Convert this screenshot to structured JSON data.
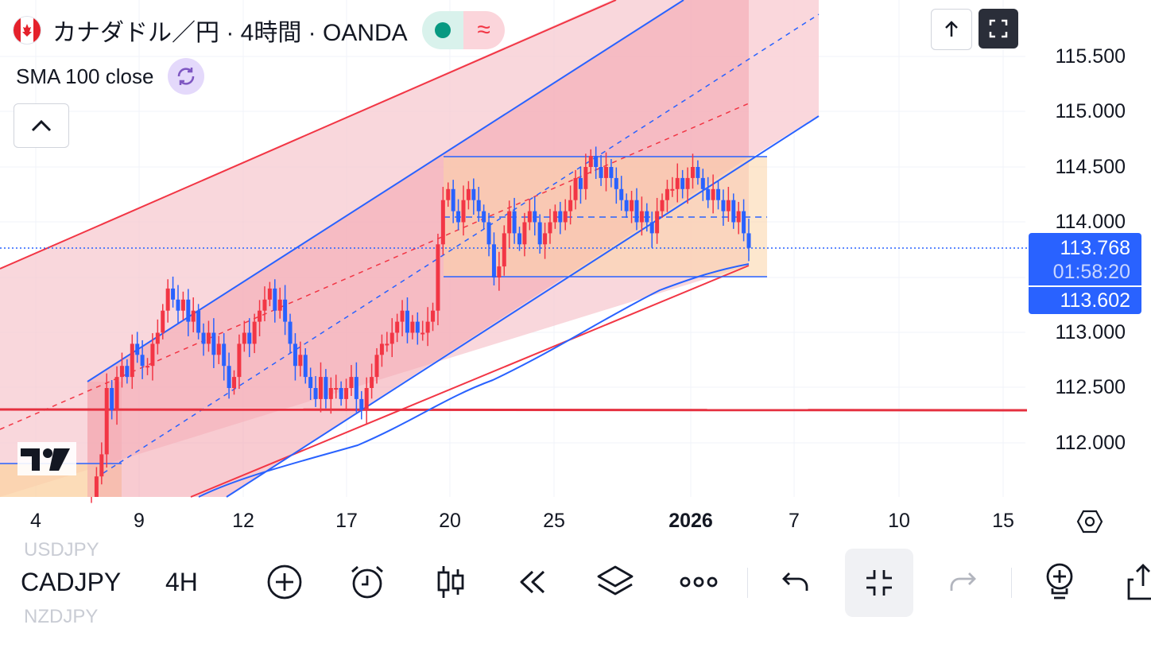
{
  "header": {
    "symbol_title": "カナダドル／円 · 4時間 · OANDA",
    "market_status_icon": "green-dot-icon",
    "wave_icon": "≈",
    "indicator_label": "SMA 100 close"
  },
  "price_axis": {
    "labels": [
      "115.500",
      "115.000",
      "114.500",
      "114.000",
      "113.000",
      "112.500",
      "112.000"
    ],
    "current_price": "113.768",
    "countdown": "01:58:20",
    "sma_price": "113.602"
  },
  "time_axis": {
    "labels": [
      {
        "text": "4",
        "bold": false
      },
      {
        "text": "9",
        "bold": false
      },
      {
        "text": "12",
        "bold": false
      },
      {
        "text": "17",
        "bold": false
      },
      {
        "text": "20",
        "bold": false
      },
      {
        "text": "25",
        "bold": false
      },
      {
        "text": "2026",
        "bold": true
      },
      {
        "text": "7",
        "bold": false
      },
      {
        "text": "10",
        "bold": false
      },
      {
        "text": "15",
        "bold": false
      }
    ]
  },
  "bottom_bar": {
    "symbol": "CADJPY",
    "timeframe": "4H",
    "ghost_above": "USDJPY",
    "ghost_below": "NZDJPY"
  },
  "colors": {
    "up": "#f23645",
    "down": "#2962ff",
    "accent": "#2962ff",
    "resistance": "#f23645"
  },
  "chart_data": {
    "type": "candlestick",
    "symbol": "CADJPY",
    "interval": "4H",
    "source": "OANDA",
    "ylim": [
      111.55,
      115.95
    ],
    "current_price": 113.768,
    "sma100_last": 113.602,
    "horizontal_level": 112.29,
    "range_box": {
      "top": 114.59,
      "bottom": 113.5,
      "mid": 114.04
    },
    "candles_close": [
      111.4,
      111.7,
      111.9,
      112.5,
      112.3,
      112.6,
      112.7,
      112.6,
      112.9,
      112.8,
      112.7,
      112.7,
      112.9,
      113.0,
      113.2,
      113.4,
      113.3,
      113.2,
      113.3,
      113.1,
      113.2,
      113.0,
      112.9,
      113.0,
      112.8,
      112.9,
      112.7,
      112.5,
      112.6,
      112.9,
      113.0,
      112.9,
      113.1,
      113.2,
      113.3,
      113.4,
      113.2,
      113.3,
      113.1,
      112.9,
      112.7,
      112.8,
      112.6,
      112.5,
      112.4,
      112.6,
      112.4,
      112.5,
      112.5,
      112.4,
      112.5,
      112.6,
      112.4,
      112.3,
      112.5,
      112.6,
      112.8,
      112.9,
      112.9,
      113.0,
      113.1,
      113.2,
      113.0,
      113.1,
      113.0,
      113.0,
      113.1,
      113.2,
      113.8,
      114.2,
      114.3,
      114.1,
      114.0,
      114.2,
      114.3,
      114.2,
      114.1,
      114.0,
      113.8,
      113.5,
      113.6,
      113.9,
      114.1,
      113.9,
      113.8,
      114.0,
      114.1,
      114.0,
      113.8,
      113.9,
      114.0,
      114.1,
      114.0,
      114.1,
      114.2,
      114.4,
      114.3,
      114.5,
      114.6,
      114.5,
      114.4,
      114.5,
      114.4,
      114.3,
      114.2,
      114.1,
      114.2,
      114.0,
      114.1,
      114.0,
      113.9,
      114.1,
      114.2,
      114.3,
      114.3,
      114.4,
      114.3,
      114.4,
      114.5,
      114.4,
      114.3,
      114.2,
      114.3,
      114.2,
      114.1,
      114.2,
      114.0,
      114.1,
      113.9,
      113.768
    ]
  }
}
